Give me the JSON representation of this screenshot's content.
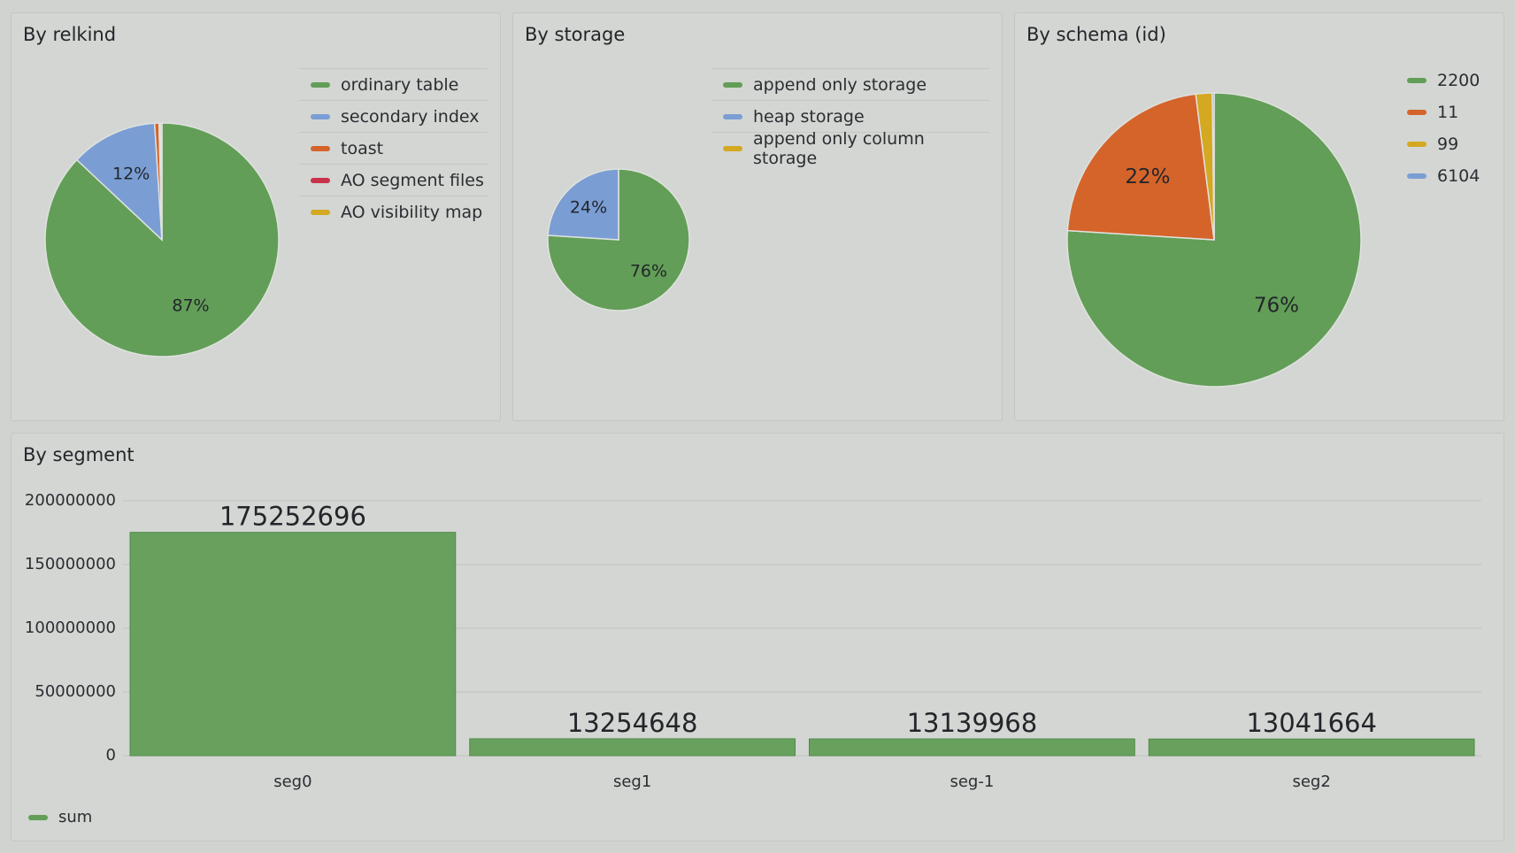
{
  "panels": {
    "relkind": {
      "title": "By relkind"
    },
    "storage": {
      "title": "By storage"
    },
    "schema": {
      "title": "By schema (id)"
    },
    "segment": {
      "title": "By segment"
    }
  },
  "colors": {
    "green": "#629e57",
    "blue": "#7a9ed4",
    "orange": "#d5642b",
    "red": "#c8324a",
    "yellow": "#d4a820"
  },
  "chart_data": [
    {
      "type": "pie",
      "title": "By relkind",
      "legend_position": "right",
      "slices": [
        {
          "name": "ordinary table",
          "value": 87,
          "label": "87%",
          "color": "#629e57"
        },
        {
          "name": "secondary index",
          "value": 12,
          "label": "12%",
          "color": "#7a9ed4"
        },
        {
          "name": "toast",
          "value": 0.6,
          "label": "",
          "color": "#d5642b"
        },
        {
          "name": "AO segment files",
          "value": 0.2,
          "label": "",
          "color": "#c8324a"
        },
        {
          "name": "AO visibility map",
          "value": 0.2,
          "label": "",
          "color": "#d4a820"
        }
      ]
    },
    {
      "type": "pie",
      "title": "By storage",
      "legend_position": "right",
      "slices": [
        {
          "name": "append only storage",
          "value": 76,
          "label": "76%",
          "color": "#629e57"
        },
        {
          "name": "heap storage",
          "value": 24,
          "label": "24%",
          "color": "#7a9ed4"
        },
        {
          "name": "append only column storage",
          "value": 0,
          "label": "",
          "color": "#d4a820"
        }
      ]
    },
    {
      "type": "pie",
      "title": "By schema (id)",
      "legend_position": "right",
      "slices": [
        {
          "name": "2200",
          "value": 76,
          "label": "76%",
          "color": "#629e57"
        },
        {
          "name": "11",
          "value": 22,
          "label": "22%",
          "color": "#d5642b"
        },
        {
          "name": "99",
          "value": 1.8,
          "label": "",
          "color": "#d4a820"
        },
        {
          "name": "6104",
          "value": 0.2,
          "label": "",
          "color": "#7a9ed4"
        }
      ]
    },
    {
      "type": "bar",
      "title": "By segment",
      "categories": [
        "seg0",
        "seg1",
        "seg-1",
        "seg2"
      ],
      "series": [
        {
          "name": "sum",
          "values": [
            175252696,
            13254648,
            13139968,
            13041664
          ],
          "color": "#629e57"
        }
      ],
      "ylim": [
        0,
        200000000
      ],
      "yticks": [
        0,
        50000000,
        100000000,
        150000000,
        200000000
      ],
      "grid": true,
      "legend_position": "bottom-left"
    }
  ]
}
